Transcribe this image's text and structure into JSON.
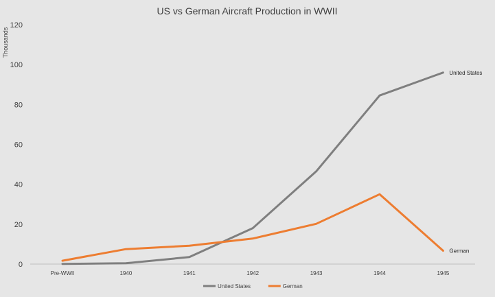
{
  "chart_data": {
    "type": "line",
    "title": "US vs German Aircraft Production in WWII",
    "xlabel": "",
    "ylabel": "Thousands",
    "categories": [
      "Pre-WWII",
      "1940",
      "1941",
      "1942",
      "1943",
      "1944",
      "1945"
    ],
    "series": [
      {
        "name": "United States",
        "color": "#7f7f7f",
        "values": [
          0.1,
          0.4,
          3.5,
          18,
          46.5,
          84.5,
          96
        ]
      },
      {
        "name": "German",
        "color": "#ed7d31",
        "values": [
          1.7,
          7.5,
          9.2,
          12.8,
          20.2,
          35,
          6.7
        ]
      }
    ],
    "ylim": [
      0,
      120
    ],
    "yticks": [
      0,
      20,
      40,
      60,
      80,
      100,
      120
    ],
    "grid": false,
    "legend": "bottom",
    "end_labels": true
  }
}
